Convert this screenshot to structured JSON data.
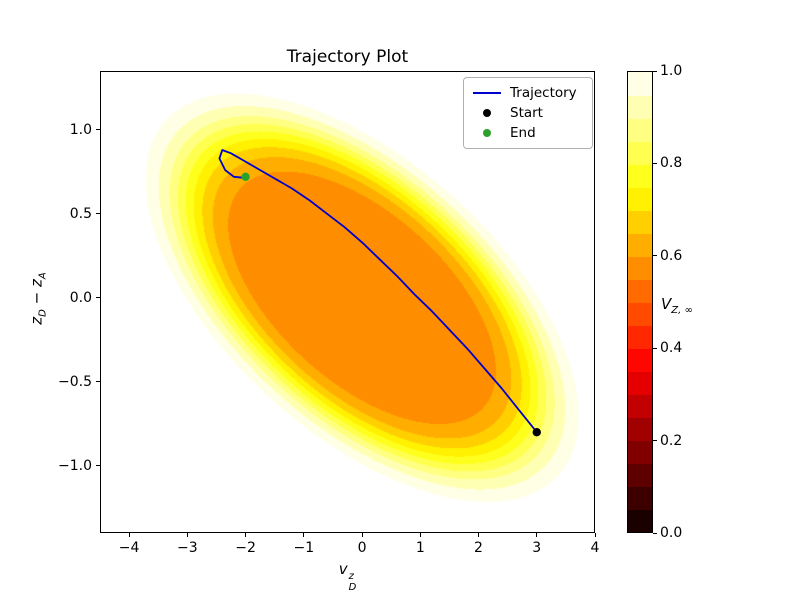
{
  "chart_data": {
    "type": "filled_contour_with_trajectory",
    "title": "Trajectory Plot",
    "xlabel_text": "v_D^z",
    "ylabel_text": "z_D − z_A",
    "axes": {
      "xlim": [
        -4.5,
        4.0
      ],
      "ylim": [
        -1.4,
        1.35
      ],
      "xticks": {
        "values": [
          -4,
          -3,
          -2,
          -1,
          0,
          1,
          2,
          3,
          4
        ],
        "labels": [
          "−4",
          "−3",
          "−2",
          "−1",
          "0",
          "1",
          "2",
          "3",
          "4"
        ]
      },
      "yticks": {
        "values": [
          -1.0,
          -0.5,
          0.0,
          0.5,
          1.0
        ],
        "labels": [
          "−1.0",
          "−0.5",
          "0.0",
          "0.5",
          "1.0"
        ]
      },
      "xlabel": {
        "base": "v",
        "sub": "D",
        "sup": "z"
      },
      "ylabel": {
        "base1": "z",
        "sub1": "D",
        "operator": " − ",
        "base2": "z",
        "sub2": "A"
      }
    },
    "field": {
      "model": "flat_top_gaussian",
      "description": "V(x,y)=1-depth*exp(-q^(exponent/2)), q=((x/a)^2-2*rho*(x/a)*(y/b)+(y/b)^2)/(1-rho^2)",
      "center": [
        0,
        0
      ],
      "a": 3.12,
      "b": 1.02,
      "rho": -0.58,
      "depth": 0.45,
      "exponent": 7,
      "white_cutoff": 0.985,
      "levels": [
        0.55,
        0.6,
        0.65,
        0.7,
        0.75,
        0.8,
        0.85,
        0.9,
        0.95,
        1.0
      ],
      "band_colors": [
        "#FF8D00",
        "#FFAE00",
        "#FFCF00",
        "#FFF100",
        "#FFFF1D",
        "#FFFF4F",
        "#FFFF81",
        "#FFFFB4",
        "#FFFFE6"
      ],
      "background": "#FFFFFF"
    },
    "trajectory": {
      "label": "Trajectory",
      "color": "#0000cd",
      "width": 1.8,
      "points": [
        [
          3.0,
          -0.8
        ],
        [
          2.7,
          -0.67
        ],
        [
          2.4,
          -0.54
        ],
        [
          2.1,
          -0.42
        ],
        [
          1.8,
          -0.3
        ],
        [
          1.5,
          -0.19
        ],
        [
          1.2,
          -0.08
        ],
        [
          0.9,
          0.02
        ],
        [
          0.6,
          0.13
        ],
        [
          0.3,
          0.23
        ],
        [
          0.0,
          0.33
        ],
        [
          -0.3,
          0.42
        ],
        [
          -0.6,
          0.5
        ],
        [
          -0.9,
          0.58
        ],
        [
          -1.2,
          0.65
        ],
        [
          -1.5,
          0.71
        ],
        [
          -1.8,
          0.77
        ],
        [
          -2.05,
          0.82
        ],
        [
          -2.25,
          0.86
        ],
        [
          -2.4,
          0.88
        ],
        [
          -2.45,
          0.83
        ],
        [
          -2.35,
          0.76
        ],
        [
          -2.2,
          0.72
        ],
        [
          -2.05,
          0.715
        ],
        [
          -2.0,
          0.72
        ]
      ]
    },
    "markers": {
      "start": {
        "label": "Start",
        "x": 3.0,
        "y": -0.8,
        "color": "#000000"
      },
      "end": {
        "label": "End",
        "x": -2.0,
        "y": 0.72,
        "color": "#2ca02c"
      }
    },
    "legend": {
      "entries": [
        {
          "label": "Trajectory",
          "type": "line",
          "color": "#0000cd"
        },
        {
          "label": "Start",
          "type": "marker",
          "color": "#000000"
        },
        {
          "label": "End",
          "type": "marker",
          "color": "#2ca02c"
        }
      ]
    },
    "colorbar": {
      "label": {
        "base": "V",
        "sub": "Z, ∞"
      },
      "cmap": "hot",
      "vmin": 0.0,
      "vmax": 1.0,
      "n_segments": 20,
      "ticks": {
        "values": [
          0.0,
          0.2,
          0.4,
          0.6,
          0.8,
          1.0
        ],
        "labels": [
          "0.0",
          "0.2",
          "0.4",
          "0.6",
          "0.8",
          "1.0"
        ]
      }
    }
  }
}
